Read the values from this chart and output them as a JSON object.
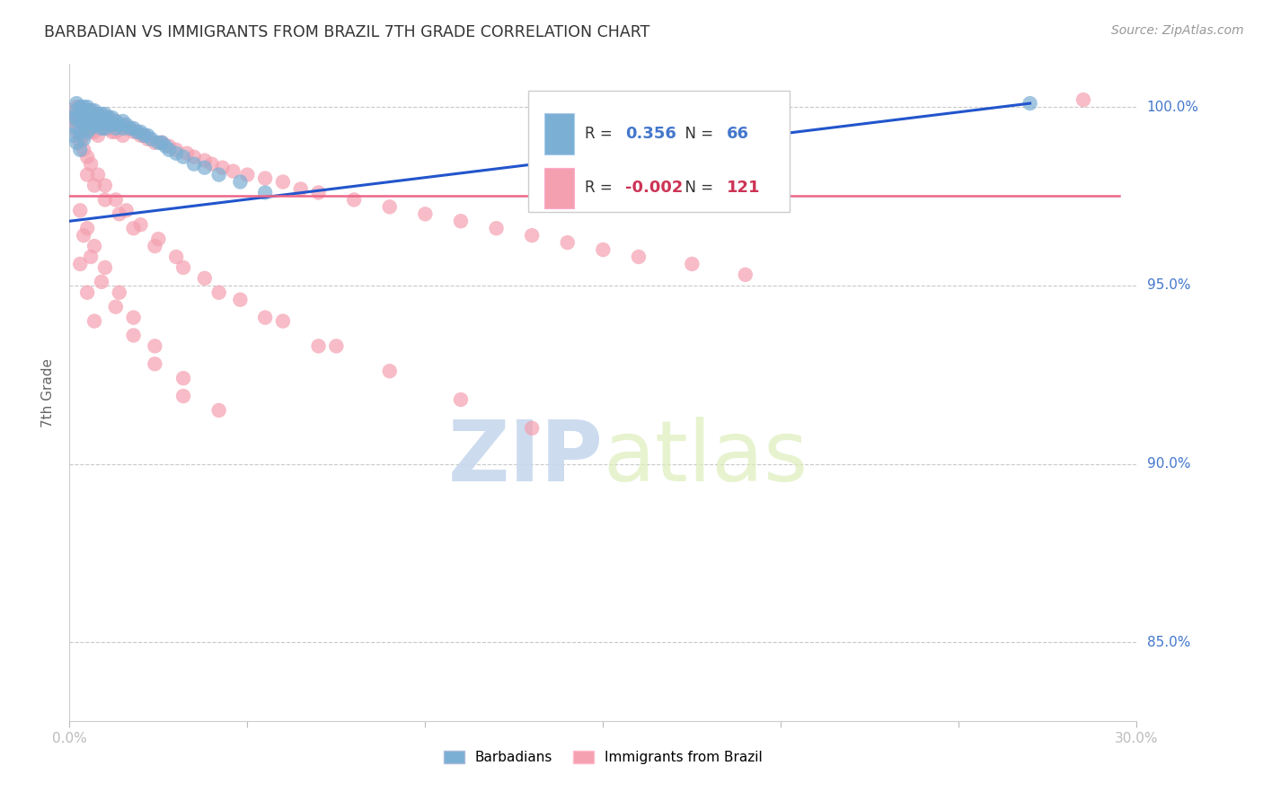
{
  "title": "BARBADIAN VS IMMIGRANTS FROM BRAZIL 7TH GRADE CORRELATION CHART",
  "source": "Source: ZipAtlas.com",
  "ylabel": "7th Grade",
  "blue_R": 0.356,
  "blue_N": 66,
  "pink_R": -0.002,
  "pink_N": 121,
  "legend_blue": "Barbadians",
  "legend_pink": "Immigrants from Brazil",
  "blue_color": "#7BAFD4",
  "pink_color": "#F4A0B0",
  "blue_line_color": "#2255CC",
  "pink_line_color": "#EE6688",
  "background": "#FFFFFF",
  "grid_color": "#BBBBBB",
  "x_min": 0.0,
  "x_max": 0.3,
  "y_min": 0.828,
  "y_max": 1.012,
  "y_ticks": [
    0.85,
    0.9,
    0.95,
    1.0
  ],
  "y_tick_labels": [
    "85.0%",
    "90.0%",
    "95.0%",
    "100.0%"
  ],
  "blue_line_x0": 0.0,
  "blue_line_y0": 0.968,
  "blue_line_x1": 0.27,
  "blue_line_y1": 1.001,
  "pink_line_x0": 0.0,
  "pink_line_y0": 0.975,
  "pink_line_x1": 0.295,
  "pink_line_y1": 0.975,
  "blue_scatter_x": [
    0.001,
    0.001,
    0.002,
    0.002,
    0.002,
    0.002,
    0.002,
    0.003,
    0.003,
    0.003,
    0.003,
    0.003,
    0.004,
    0.004,
    0.004,
    0.004,
    0.004,
    0.005,
    0.005,
    0.005,
    0.005,
    0.006,
    0.006,
    0.006,
    0.006,
    0.007,
    0.007,
    0.007,
    0.008,
    0.008,
    0.008,
    0.009,
    0.009,
    0.009,
    0.01,
    0.01,
    0.01,
    0.011,
    0.011,
    0.012,
    0.012,
    0.013,
    0.013,
    0.014,
    0.015,
    0.015,
    0.016,
    0.017,
    0.018,
    0.019,
    0.02,
    0.021,
    0.022,
    0.023,
    0.025,
    0.026,
    0.027,
    0.028,
    0.03,
    0.032,
    0.035,
    0.038,
    0.042,
    0.048,
    0.055,
    0.27
  ],
  "blue_scatter_y": [
    0.997,
    0.992,
    1.001,
    0.999,
    0.997,
    0.994,
    0.99,
    1.0,
    0.998,
    0.996,
    0.993,
    0.988,
    1.0,
    0.999,
    0.997,
    0.995,
    0.991,
    1.0,
    0.998,
    0.996,
    0.993,
    0.999,
    0.998,
    0.996,
    0.994,
    0.999,
    0.997,
    0.995,
    0.998,
    0.997,
    0.995,
    0.998,
    0.996,
    0.994,
    0.998,
    0.996,
    0.994,
    0.997,
    0.995,
    0.997,
    0.995,
    0.996,
    0.994,
    0.995,
    0.996,
    0.994,
    0.995,
    0.994,
    0.994,
    0.993,
    0.993,
    0.992,
    0.992,
    0.991,
    0.99,
    0.99,
    0.989,
    0.988,
    0.987,
    0.986,
    0.984,
    0.983,
    0.981,
    0.979,
    0.976,
    1.001
  ],
  "pink_scatter_x": [
    0.001,
    0.001,
    0.002,
    0.002,
    0.002,
    0.002,
    0.003,
    0.003,
    0.003,
    0.003,
    0.004,
    0.004,
    0.004,
    0.004,
    0.005,
    0.005,
    0.005,
    0.006,
    0.006,
    0.006,
    0.007,
    0.007,
    0.007,
    0.008,
    0.008,
    0.008,
    0.009,
    0.009,
    0.01,
    0.01,
    0.011,
    0.011,
    0.012,
    0.012,
    0.013,
    0.013,
    0.014,
    0.015,
    0.015,
    0.016,
    0.017,
    0.018,
    0.019,
    0.02,
    0.021,
    0.022,
    0.024,
    0.026,
    0.028,
    0.03,
    0.033,
    0.035,
    0.038,
    0.04,
    0.043,
    0.046,
    0.05,
    0.055,
    0.06,
    0.065,
    0.07,
    0.08,
    0.09,
    0.1,
    0.11,
    0.12,
    0.13,
    0.14,
    0.15,
    0.16,
    0.175,
    0.19,
    0.003,
    0.004,
    0.005,
    0.006,
    0.008,
    0.01,
    0.013,
    0.016,
    0.02,
    0.025,
    0.03,
    0.038,
    0.048,
    0.06,
    0.075,
    0.09,
    0.11,
    0.13,
    0.005,
    0.007,
    0.01,
    0.014,
    0.018,
    0.024,
    0.032,
    0.042,
    0.055,
    0.07,
    0.003,
    0.005,
    0.007,
    0.01,
    0.014,
    0.018,
    0.024,
    0.032,
    0.042,
    0.004,
    0.006,
    0.009,
    0.013,
    0.018,
    0.024,
    0.032,
    0.003,
    0.005,
    0.007,
    0.285
  ],
  "pink_scatter_y": [
    0.999,
    0.996,
    1.0,
    0.998,
    0.996,
    0.993,
    1.0,
    0.998,
    0.995,
    0.992,
    0.999,
    0.997,
    0.995,
    0.992,
    0.999,
    0.997,
    0.994,
    0.999,
    0.996,
    0.993,
    0.998,
    0.996,
    0.993,
    0.998,
    0.995,
    0.992,
    0.997,
    0.994,
    0.997,
    0.994,
    0.997,
    0.994,
    0.996,
    0.993,
    0.996,
    0.993,
    0.995,
    0.995,
    0.992,
    0.994,
    0.994,
    0.993,
    0.993,
    0.992,
    0.992,
    0.991,
    0.99,
    0.99,
    0.989,
    0.988,
    0.987,
    0.986,
    0.985,
    0.984,
    0.983,
    0.982,
    0.981,
    0.98,
    0.979,
    0.977,
    0.976,
    0.974,
    0.972,
    0.97,
    0.968,
    0.966,
    0.964,
    0.962,
    0.96,
    0.958,
    0.956,
    0.953,
    0.99,
    0.988,
    0.986,
    0.984,
    0.981,
    0.978,
    0.974,
    0.971,
    0.967,
    0.963,
    0.958,
    0.952,
    0.946,
    0.94,
    0.933,
    0.926,
    0.918,
    0.91,
    0.981,
    0.978,
    0.974,
    0.97,
    0.966,
    0.961,
    0.955,
    0.948,
    0.941,
    0.933,
    0.971,
    0.966,
    0.961,
    0.955,
    0.948,
    0.941,
    0.933,
    0.924,
    0.915,
    0.964,
    0.958,
    0.951,
    0.944,
    0.936,
    0.928,
    0.919,
    0.956,
    0.948,
    0.94,
    1.002
  ]
}
